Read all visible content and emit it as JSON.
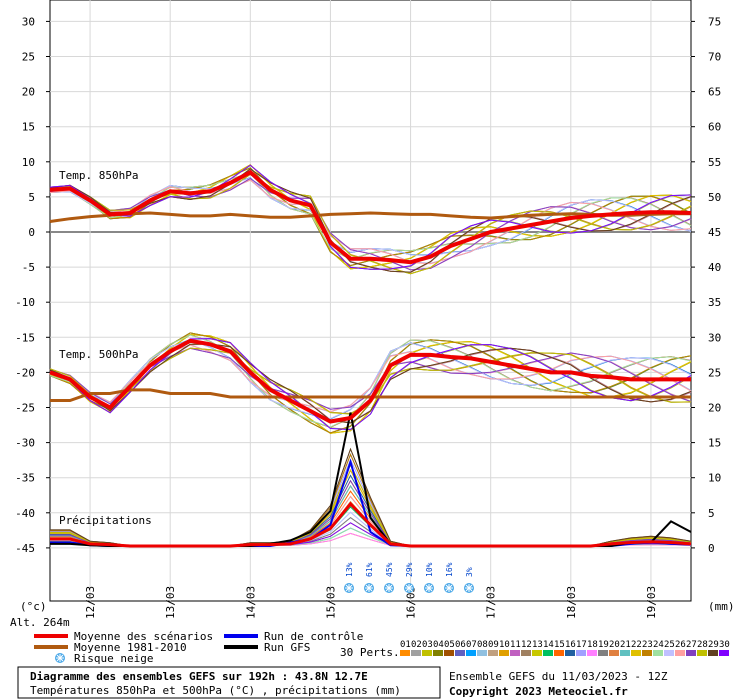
{
  "chart_data": {
    "type": "line",
    "x_days": [
      "12/03",
      "13/03",
      "14/03",
      "15/03",
      "16/03",
      "17/03",
      "18/03",
      "19/03"
    ],
    "x_hours_total": 192,
    "y_left_ticks": [
      30,
      25,
      20,
      15,
      10,
      5,
      0,
      -5,
      -10,
      -15,
      -20,
      -25,
      -30,
      -35,
      -40,
      -45
    ],
    "y_right_ticks": [
      75,
      70,
      65,
      60,
      55,
      50,
      45,
      40,
      35,
      30,
      25,
      20,
      15,
      10,
      5,
      0
    ],
    "y_left_unit": "(°c)",
    "y_right_unit": "(mm)",
    "altitude": "Alt. 264m",
    "panel_labels": {
      "t850": "Temp. 850hPa",
      "t500": "Temp. 500hPa",
      "precip": "Précipitations"
    },
    "t850_mean": [
      6,
      6.2,
      4.5,
      2.5,
      2.7,
      4.5,
      5.8,
      5.5,
      5.8,
      7,
      8.5,
      6,
      4.5,
      3.8,
      -1.5,
      -3.8,
      -3.8,
      -4,
      -4.3,
      -3.5,
      -2,
      -1,
      0,
      0.5,
      1,
      1.5,
      2,
      2.3,
      2.5,
      2.7,
      2.8,
      2.8,
      2.7
    ],
    "t850_clim": [
      1.5,
      1.9,
      2.2,
      2.4,
      2.6,
      2.7,
      2.5,
      2.3,
      2.3,
      2.5,
      2.3,
      2.1,
      2.1,
      2.3,
      2.5,
      2.6,
      2.7,
      2.6,
      2.5,
      2.5,
      2.3,
      2.1,
      2.0,
      2.2,
      2.4,
      2.5,
      2.6,
      2.5,
      2.4,
      2.4,
      2.5,
      2.6,
      2.6
    ],
    "t500_mean": [
      -20,
      -21,
      -23.5,
      -25,
      -22,
      -19,
      -17,
      -15.5,
      -16,
      -17,
      -20,
      -22.5,
      -24,
      -25.5,
      -27,
      -26.5,
      -24,
      -19,
      -17.5,
      -17.5,
      -17.8,
      -18,
      -18.5,
      -19,
      -19.5,
      -20,
      -20,
      -20.5,
      -20.7,
      -21,
      -21,
      -21,
      -21
    ],
    "t500_clim": [
      -24,
      -24,
      -23,
      -23,
      -22.5,
      -22.5,
      -23,
      -23,
      -23,
      -23.5,
      -23.5,
      -23.5,
      -23.5,
      -23.5,
      -23.5,
      -23.5,
      -23.5,
      -23.5,
      -23.5,
      -23.5,
      -23.5,
      -23.5,
      -23.5,
      -23.5,
      -23.5,
      -23.5,
      -23.5,
      -23.5,
      -23.5,
      -23.5,
      -23.5,
      -23.5,
      -23.5
    ],
    "precip_mean_mm": [
      1,
      1,
      0.3,
      0.2,
      0,
      0,
      0,
      0,
      0,
      0,
      0.2,
      0.2,
      0.3,
      1,
      2.5,
      6,
      3,
      0.3,
      0,
      0,
      0,
      0,
      0,
      0,
      0,
      0,
      0,
      0,
      0.3,
      0.5,
      0.6,
      0.5,
      0.3
    ],
    "precip_control_mm": [
      0.5,
      0.5,
      0.1,
      0,
      0,
      0,
      0,
      0,
      0,
      0,
      0,
      0,
      0.5,
      1,
      3,
      12,
      2,
      0.1,
      0,
      0,
      0,
      0,
      0,
      0,
      0,
      0,
      0,
      0,
      0,
      0.3,
      0.5,
      0.3,
      0.2
    ],
    "precip_gfs_mm": [
      0.3,
      0.3,
      0.1,
      0,
      0,
      0,
      0,
      0,
      0,
      0,
      0,
      0.3,
      0.8,
      2,
      5,
      19,
      4,
      0.3,
      0,
      0,
      0,
      0,
      0,
      0,
      0,
      0,
      0,
      0,
      0,
      0.5,
      0.5,
      3.5,
      2
    ],
    "snow_risk": [
      {
        "pct": "13%",
        "step": 13
      },
      {
        "pct": "61%",
        "step": 14
      },
      {
        "pct": "45%",
        "step": 15
      },
      {
        "pct": "29%",
        "step": 16
      },
      {
        "pct": "10%",
        "step": 17
      },
      {
        "pct": "16%",
        "step": 18
      },
      {
        "pct": "3%",
        "step": 19
      }
    ],
    "legend": [
      {
        "label": "Moyenne des scénarios",
        "color": "#ee0000"
      },
      {
        "label": "Moyenne 1981-2010",
        "color": "#b05a10"
      },
      {
        "label": "Risque neige",
        "color": "#4aa8e8"
      },
      {
        "label": "Run de contrôle",
        "color": "#0000ee"
      },
      {
        "label": "Run GFS",
        "color": "#000000"
      }
    ],
    "perts_label": "30 Perts.",
    "perts": [
      "01",
      "02",
      "03",
      "04",
      "05",
      "06",
      "07",
      "08",
      "09",
      "10",
      "11",
      "12",
      "13",
      "14",
      "15",
      "16",
      "17",
      "18",
      "19",
      "20",
      "21",
      "22",
      "23",
      "24",
      "25",
      "26",
      "27",
      "28",
      "29",
      "30"
    ],
    "perts_colors": [
      "#ff8c00",
      "#a0a0a0",
      "#c0c000",
      "#808000",
      "#a05000",
      "#6060c0",
      "#00a0ff",
      "#90c0e0",
      "#c0a080",
      "#e0a000",
      "#c060c0",
      "#a08060",
      "#c8c800",
      "#00c060",
      "#ff6600",
      "#2060a0",
      "#a0a0ff",
      "#ff80ff",
      "#808080",
      "#e08040",
      "#60c0c0",
      "#e0c000",
      "#c08000",
      "#a0e0a0",
      "#c0c0ff",
      "#ffa0a0",
      "#8040c0",
      "#c0c000",
      "#604020",
      "#8000ff"
    ],
    "title": "Diagramme des ensembles GEFS sur 192h : 43.8N 12.7E",
    "subtitle": "Températures 850hPa et 500hPa (°C) , précipitations (mm)",
    "run_info": "Ensemble GEFS du 11/03/2023 - 12Z",
    "copyright": "Copyright 2023 Meteociel.fr"
  }
}
